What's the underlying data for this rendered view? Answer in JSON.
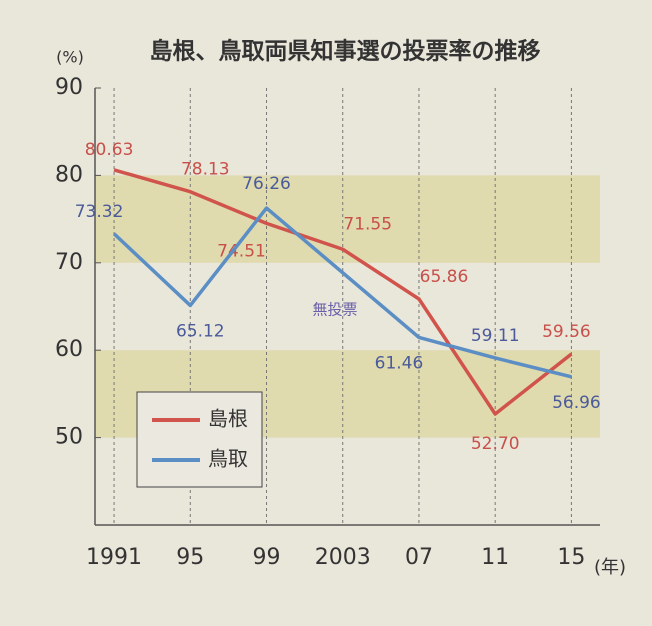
{
  "chart_data": {
    "type": "line",
    "title": "島根、鳥取両県知事選の投票率の推移",
    "y_unit": "(%)",
    "x_unit": "(年)",
    "annotation": "無投票",
    "xlim": [
      1990,
      2016.5
    ],
    "ylim": [
      40,
      90
    ],
    "xticks": [
      1991,
      {
        "value": 1995,
        "label": "95"
      },
      {
        "value": 1999,
        "label": "99"
      },
      2003,
      {
        "value": 2007,
        "label": "07"
      },
      {
        "value": 2011,
        "label": "11"
      },
      {
        "value": 2015,
        "label": "15"
      }
    ],
    "yticks": [
      50,
      60,
      70,
      80,
      90
    ],
    "bands": [
      [
        70,
        80
      ],
      [
        50,
        60
      ]
    ],
    "band_color": "#ddd7a4",
    "grid": true,
    "legend": "lower left",
    "series": [
      {
        "name": "島根",
        "color": "#d0544c",
        "x": [
          1991,
          1995,
          1999,
          2003,
          2007,
          2011,
          2015
        ],
        "values": [
          80.63,
          78.13,
          74.51,
          71.55,
          65.86,
          52.7,
          59.56
        ],
        "value_labels": [
          "80.63",
          "78.13",
          "74.51",
          "71.55",
          "65.86",
          "52.70",
          "59.56"
        ]
      },
      {
        "name": "鳥取",
        "color": "#5b8ec4",
        "x": [
          1991,
          1995,
          1999,
          2007,
          2011,
          2015
        ],
        "values": [
          73.32,
          65.12,
          76.26,
          61.46,
          59.11,
          56.96
        ],
        "value_labels": [
          "73.32",
          "65.12",
          "76.26",
          "61.46",
          "59.11",
          "56.96"
        ]
      }
    ]
  }
}
